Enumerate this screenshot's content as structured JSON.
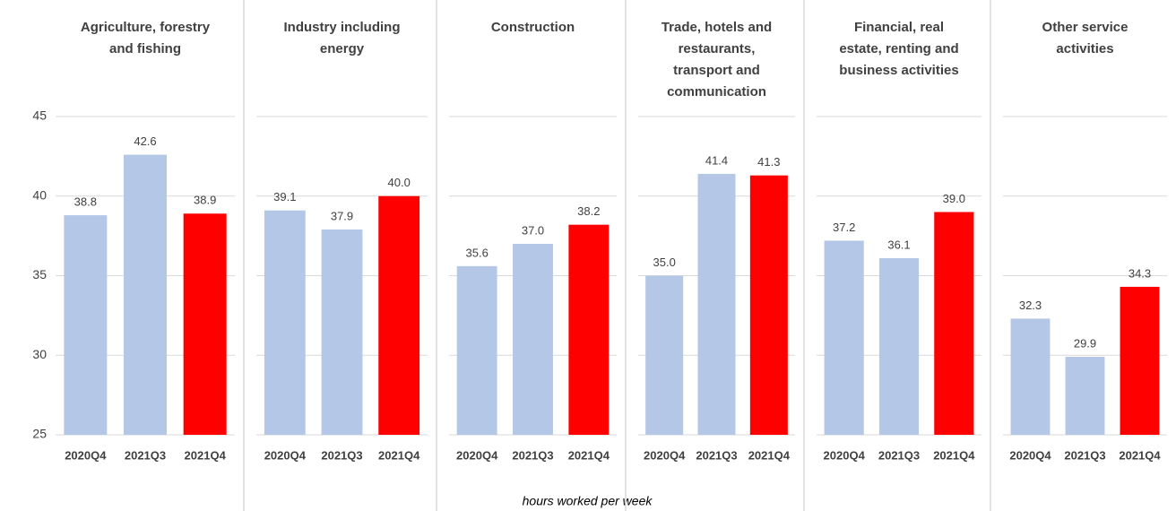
{
  "x_label": "hours worked per week",
  "chart_data": [
    {
      "type": "bar",
      "title": [
        "Agriculture, forestry",
        "and fishing"
      ],
      "categories": [
        "2020Q4",
        "2021Q3",
        "2021Q4"
      ],
      "values": [
        38.8,
        42.6,
        38.9
      ],
      "value_labels": [
        "38.8",
        "42.6",
        "38.9"
      ],
      "colors": [
        "#b4c7e7",
        "#b4c7e7",
        "#ff0000"
      ],
      "ylim": [
        25,
        45
      ],
      "yticks": [
        25,
        30,
        35,
        40,
        45
      ],
      "ytick_labels": true,
      "grid": true
    },
    {
      "type": "bar",
      "title": [
        "Industry including",
        "energy"
      ],
      "categories": [
        "2020Q4",
        "2021Q3",
        "2021Q4"
      ],
      "values": [
        39.1,
        37.9,
        40.0
      ],
      "value_labels": [
        "39.1",
        "37.9",
        "40.0"
      ],
      "colors": [
        "#b4c7e7",
        "#b4c7e7",
        "#ff0000"
      ],
      "ylim": [
        25,
        45
      ],
      "yticks": [
        25,
        30,
        35,
        40,
        45
      ],
      "ytick_labels": false,
      "grid": true
    },
    {
      "type": "bar",
      "title": [
        "Construction"
      ],
      "categories": [
        "2020Q4",
        "2021Q3",
        "2021Q4"
      ],
      "values": [
        35.6,
        37.0,
        38.2
      ],
      "value_labels": [
        "35.6",
        "37.0",
        "38.2"
      ],
      "colors": [
        "#b4c7e7",
        "#b4c7e7",
        "#ff0000"
      ],
      "ylim": [
        25,
        45
      ],
      "yticks": [
        25,
        30,
        35,
        40,
        45
      ],
      "ytick_labels": false,
      "grid": true
    },
    {
      "type": "bar",
      "title": [
        "Trade, hotels and",
        "restaurants,",
        "transport and",
        "communication"
      ],
      "categories": [
        "2020Q4",
        "2021Q3",
        "2021Q4"
      ],
      "values": [
        35.0,
        41.4,
        41.3
      ],
      "value_labels": [
        "35.0",
        "41.4",
        "41.3"
      ],
      "colors": [
        "#b4c7e7",
        "#b4c7e7",
        "#ff0000"
      ],
      "ylim": [
        25,
        45
      ],
      "yticks": [
        25,
        30,
        35,
        40,
        45
      ],
      "ytick_labels": false,
      "grid": true
    },
    {
      "type": "bar",
      "title": [
        "Financial, real",
        "estate, renting and",
        "business activities"
      ],
      "categories": [
        "2020Q4",
        "2021Q3",
        "2021Q4"
      ],
      "values": [
        37.2,
        36.1,
        39.0
      ],
      "value_labels": [
        "37.2",
        "36.1",
        "39.0"
      ],
      "colors": [
        "#b4c7e7",
        "#b4c7e7",
        "#ff0000"
      ],
      "ylim": [
        25,
        45
      ],
      "yticks": [
        25,
        30,
        35,
        40,
        45
      ],
      "ytick_labels": false,
      "grid": true
    },
    {
      "type": "bar",
      "title": [
        "Other service",
        "activities"
      ],
      "categories": [
        "2020Q4",
        "2021Q3",
        "2021Q4"
      ],
      "values": [
        32.3,
        29.9,
        34.3
      ],
      "value_labels": [
        "32.3",
        "29.9",
        "34.3"
      ],
      "colors": [
        "#b4c7e7",
        "#b4c7e7",
        "#ff0000"
      ],
      "ylim": [
        25,
        45
      ],
      "yticks": [
        25,
        30,
        35,
        40,
        45
      ],
      "ytick_labels": false,
      "grid": true
    }
  ]
}
